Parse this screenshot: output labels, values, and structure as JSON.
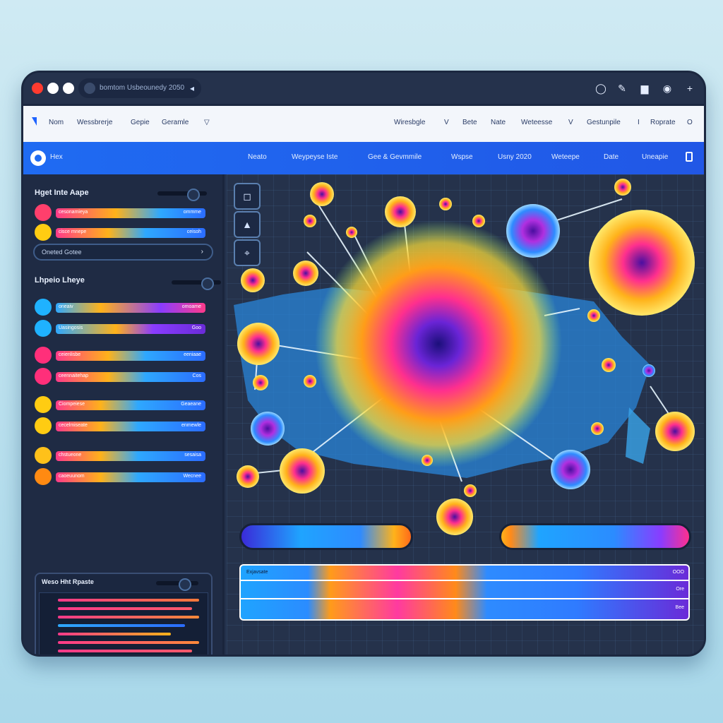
{
  "browser": {
    "address_text": "bomtom Usbeounedy 2050",
    "icons": [
      "circle-icon",
      "pen-icon",
      "file-icon",
      "record-icon",
      "plus-icon"
    ]
  },
  "topnav": {
    "left_items": [
      "Nom",
      "Wessbrerje",
      "Gepie",
      "Geramle"
    ],
    "right_items": [
      "Wiresbgle",
      "V",
      "Bete",
      "Nate",
      "Weteesse",
      "V",
      "Gestunpile",
      "I",
      "Roprate",
      "O"
    ]
  },
  "bluebar": {
    "home_label": "Hex",
    "items": [
      "Neato",
      "Weypeyse Iste",
      "Gee & Gevmmile",
      "Wspse",
      "Usny 2020",
      "Weteepe",
      "Date",
      "Uneapie"
    ]
  },
  "left_panel": {
    "section1_title": "Hget Inte Aape",
    "search_placeholder": "Oneted Gotee",
    "section2_title": "Lhpeio Lheye",
    "rows_section1": [
      {
        "label": "cesonamieya",
        "value": "ommme"
      },
      {
        "label": "cisce mnepe",
        "value": "ceisoh"
      }
    ],
    "rows_section2": [
      {
        "label": "oneaiv",
        "value": "omoame"
      },
      {
        "label": "Uasingosis",
        "value": "Goo"
      },
      {
        "label": "ceienlisbe",
        "value": "eeniaae"
      },
      {
        "label": "ceennaitehap",
        "value": "Cos"
      },
      {
        "label": "Ciompeiese",
        "value": "Geaeane"
      },
      {
        "label": "cecelmiseate",
        "value": "enmewle"
      },
      {
        "label": "chstueone",
        "value": "sesaisa"
      },
      {
        "label": "caoeuunom",
        "value": "Wecnee"
      }
    ],
    "mini_card_title": "Weso Hht Rpaste"
  },
  "map_panel": {
    "tools": [
      "square-icon",
      "triangle-icon",
      "pin-icon"
    ],
    "legend_label": "Exjavsate",
    "legend_values": [
      "OOO",
      "Ore",
      "Bee"
    ]
  },
  "colors": {
    "accent_blue": "#1f6bf2",
    "window_bg": "#24324d",
    "heat_core": "#3b1fb0",
    "heat_mid": "#ff2f8e",
    "heat_outer": "#ffb21a"
  }
}
